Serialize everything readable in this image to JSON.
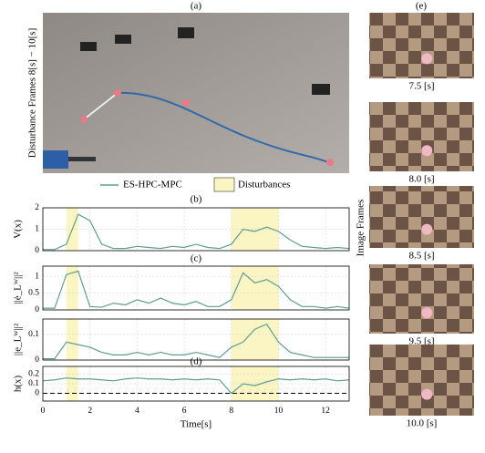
{
  "figure": {
    "panel_a": "(a)",
    "panel_b": "(b)",
    "panel_c": "(c)",
    "panel_d": "(d)",
    "panel_e": "(e)",
    "frames_label": "Disturbance Frames 8[s] − 10[s]",
    "image_frames_label": "Image Frames",
    "frame_times": [
      "7.5 [s]",
      "8.0 [s]",
      "8.5 [s]",
      "9.5 [s]",
      "10.0 [s]"
    ]
  },
  "chart_data": [
    {
      "type": "line",
      "ylabel": "V(x)",
      "x": [
        0,
        0.5,
        1,
        1.5,
        2,
        2.5,
        3,
        3.5,
        4,
        4.5,
        5,
        5.5,
        6,
        6.5,
        7,
        7.5,
        8,
        8.5,
        9,
        9.5,
        10,
        10.5,
        11,
        11.5,
        12,
        12.5,
        13
      ],
      "series": [
        {
          "name": "ES-HPC-MPC",
          "color": "#5f9e8f",
          "values": [
            0.05,
            0.05,
            0.3,
            1.7,
            1.4,
            0.3,
            0.1,
            0.1,
            0.2,
            0.15,
            0.1,
            0.2,
            0.15,
            0.3,
            0.15,
            0.1,
            0.3,
            1.0,
            0.9,
            1.1,
            0.9,
            0.5,
            0.2,
            0.15,
            0.1,
            0.15,
            0.1
          ]
        }
      ],
      "disturbance_label": "Disturbances",
      "disturbances": [
        [
          1,
          1.5
        ],
        [
          8,
          10
        ]
      ],
      "disturbance_color": "#fbf5c4",
      "xlim": [
        0,
        13
      ],
      "xticks": [
        0,
        2,
        4,
        6,
        8,
        10,
        12
      ],
      "ylim": [
        0,
        2
      ],
      "yticks": [
        0,
        1,
        2
      ],
      "grid": true
    },
    {
      "type": "line",
      "ylabel": "||ė_Lᵂ||²",
      "x": [
        0,
        0.5,
        1,
        1.5,
        2,
        2.5,
        3,
        3.5,
        4,
        4.5,
        5,
        5.5,
        6,
        6.5,
        7,
        7.5,
        8,
        8.5,
        9,
        9.5,
        10,
        10.5,
        11,
        11.5,
        12,
        12.5,
        13
      ],
      "series": [
        {
          "color": "#5f9e8f",
          "values": [
            0.05,
            0.05,
            1.05,
            1.15,
            0.1,
            0.08,
            0.2,
            0.15,
            0.3,
            0.2,
            0.35,
            0.2,
            0.15,
            0.25,
            0.1,
            0.1,
            0.3,
            1.1,
            0.8,
            0.9,
            0.7,
            0.3,
            0.1,
            0.1,
            0.05,
            0.1,
            0.05
          ]
        }
      ],
      "disturbances": [
        [
          1,
          1.5
        ],
        [
          8,
          10
        ]
      ],
      "disturbance_color": "#fbf5c4",
      "xlim": [
        0,
        13
      ],
      "xticks": [
        0,
        2,
        4,
        6,
        8,
        10,
        12
      ],
      "ylim": [
        0,
        1.3
      ],
      "yticks": [
        0,
        0.5,
        1
      ],
      "grid": true
    },
    {
      "type": "line",
      "ylabel": "||e_Lᵂ||²",
      "x": [
        0,
        0.5,
        1,
        1.5,
        2,
        2.5,
        3,
        3.5,
        4,
        4.5,
        5,
        5.5,
        6,
        6.5,
        7,
        7.5,
        8,
        8.5,
        9,
        9.5,
        10,
        10.5,
        11,
        11.5,
        12,
        12.5,
        13
      ],
      "series": [
        {
          "color": "#5f9e8f",
          "values": [
            0.005,
            0.005,
            0.07,
            0.06,
            0.05,
            0.03,
            0.02,
            0.02,
            0.03,
            0.02,
            0.03,
            0.02,
            0.02,
            0.03,
            0.02,
            0.01,
            0.05,
            0.07,
            0.12,
            0.14,
            0.07,
            0.03,
            0.02,
            0.01,
            0.01,
            0.01,
            0.01
          ]
        }
      ],
      "disturbances": [
        [
          1,
          1.5
        ],
        [
          8,
          10
        ]
      ],
      "disturbance_color": "#fbf5c4",
      "xlim": [
        0,
        13
      ],
      "xticks": [
        0,
        2,
        4,
        6,
        8,
        10,
        12
      ],
      "ylim": [
        0,
        0.16
      ],
      "yticks": [
        0,
        0.1
      ],
      "grid": true
    },
    {
      "type": "line",
      "ylabel": "h(x)",
      "xlabel": "Time[s]",
      "x": [
        0,
        0.5,
        1,
        1.5,
        2,
        2.5,
        3,
        3.5,
        4,
        4.5,
        5,
        5.5,
        6,
        6.5,
        7,
        7.5,
        8,
        8.5,
        9,
        9.5,
        10,
        10.5,
        11,
        11.5,
        12,
        12.5,
        13
      ],
      "series": [
        {
          "color": "#5f9e8f",
          "values": [
            0.13,
            0.14,
            0.16,
            0.15,
            0.15,
            0.14,
            0.13,
            0.15,
            0.16,
            0.15,
            0.15,
            0.14,
            0.15,
            0.14,
            0.15,
            0.14,
            0.0,
            0.1,
            0.08,
            0.12,
            0.15,
            0.14,
            0.15,
            0.14,
            0.15,
            0.13,
            0.14
          ]
        }
      ],
      "disturbances": [
        [
          1,
          1.5
        ],
        [
          8,
          10
        ]
      ],
      "disturbance_color": "#fbf5c4",
      "hline": 0,
      "xlim": [
        0,
        13
      ],
      "xticks": [
        0,
        2,
        4,
        6,
        8,
        10,
        12
      ],
      "ylim": [
        -0.08,
        0.28
      ],
      "yticks": [
        0,
        0.1,
        0.2
      ],
      "grid": true
    }
  ]
}
